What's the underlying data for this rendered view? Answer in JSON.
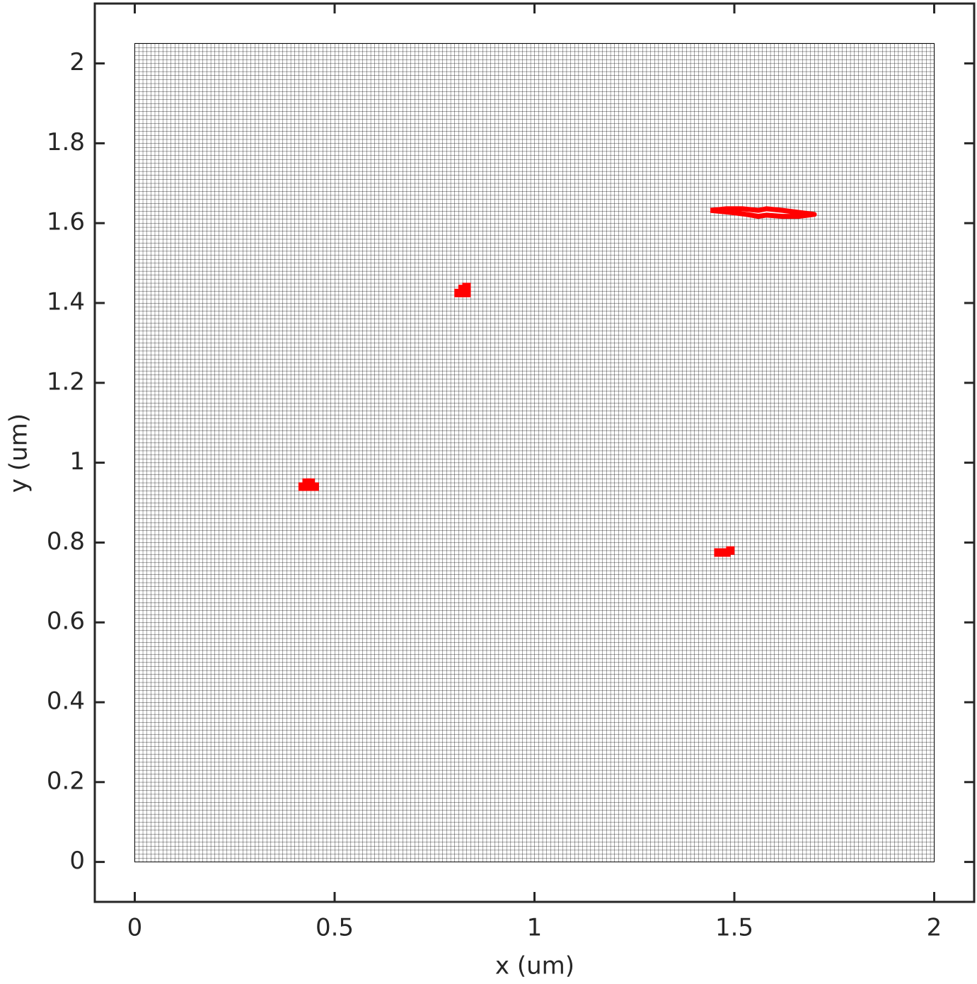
{
  "chart_data": {
    "type": "scatter",
    "xlabel": "x (um)",
    "ylabel": "y (um)",
    "xlim": [
      -0.1,
      2.1
    ],
    "ylim": [
      -0.1,
      2.15
    ],
    "xticks": [
      0,
      0.5,
      1,
      1.5,
      2
    ],
    "yticks": [
      0,
      0.2,
      0.4,
      0.6,
      0.8,
      1,
      1.2,
      1.4,
      1.6,
      1.8,
      2
    ],
    "mesh_x": [
      0,
      2
    ],
    "mesh_y": [
      0,
      2.05
    ],
    "mesh_spacing": 0.01,
    "series": [
      {
        "color": "#ff0000",
        "x": [
          0.42,
          0.43,
          0.44,
          0.45,
          0.43,
          0.44
        ],
        "y": [
          0.94,
          0.95,
          0.95,
          0.94,
          0.94,
          0.94
        ]
      },
      {
        "color": "#ff0000",
        "x": [
          0.81,
          0.82,
          0.83,
          0.83,
          0.82
        ],
        "y": [
          1.425,
          1.435,
          1.44,
          1.425,
          1.425
        ]
      },
      {
        "color": "#ff0000",
        "x": [
          1.46,
          1.47,
          1.48,
          1.49
        ],
        "y": [
          0.775,
          0.775,
          0.775,
          0.78
        ]
      },
      {
        "color": "#ff0000",
        "closed": true,
        "x": [
          1.44,
          1.48,
          1.52,
          1.56,
          1.58,
          1.62,
          1.66,
          1.7,
          1.66,
          1.62,
          1.58,
          1.56,
          1.53,
          1.49,
          1.44
        ],
        "y": [
          1.632,
          1.636,
          1.636,
          1.632,
          1.636,
          1.632,
          1.627,
          1.622,
          1.617,
          1.617,
          1.62,
          1.617,
          1.622,
          1.627,
          1.632
        ]
      }
    ]
  }
}
